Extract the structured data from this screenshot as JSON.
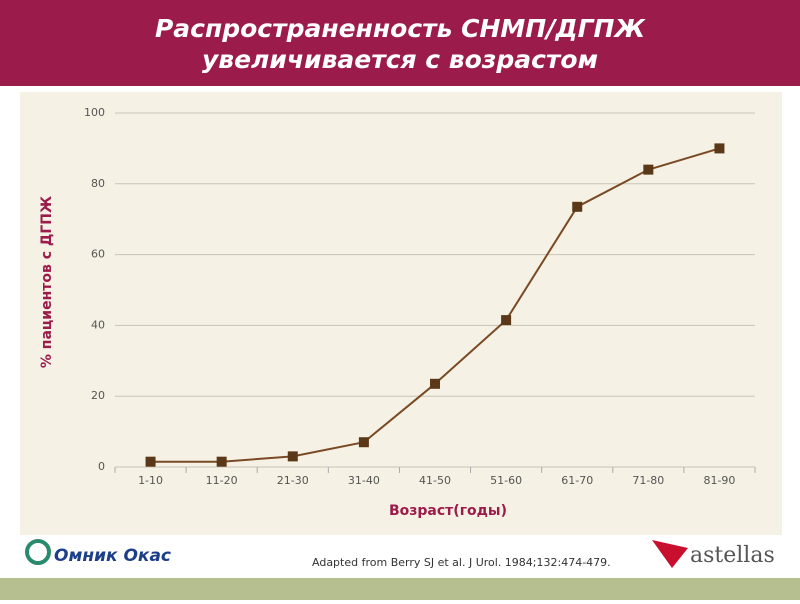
{
  "slide": {
    "title_lines": [
      "Распространенность СНМП/ДГПЖ",
      "увеличивается с возрастом"
    ]
  },
  "chart_data": {
    "type": "line",
    "x_label": "Возраст(годы)",
    "y_label": "% пациентов с ДГПЖ",
    "categories": [
      "1-10",
      "11-20",
      "21-30",
      "31-40",
      "41-50",
      "51-60",
      "61-70",
      "71-80",
      "81-90"
    ],
    "values": [
      1.5,
      1.5,
      3,
      7,
      23.5,
      41.5,
      73.5,
      84,
      90
    ],
    "color": "#7a4a25",
    "marker_color": "#5a3818",
    "ylim": [
      0,
      100
    ],
    "yticks": [
      0,
      20,
      40,
      60,
      80,
      100
    ],
    "grid": true
  },
  "footer": {
    "citation": "Adapted from Berry SJ et al. J Urol. 1984;132:474-479.",
    "logo_left": "Омник Окас",
    "logo_right": "astellas"
  }
}
